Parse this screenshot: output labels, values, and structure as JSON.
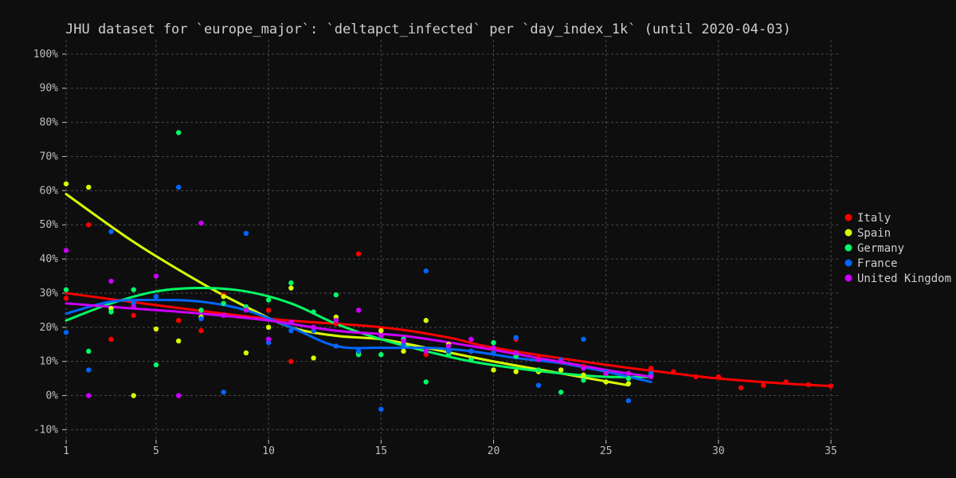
{
  "chart_data": {
    "type": "scatter",
    "title": "JHU dataset for `europe_major`: `deltapct_infected` per `day_index_1k` (until 2020-04-03)",
    "xlabel": "",
    "ylabel": "",
    "xlim": [
      1,
      35
    ],
    "ylim": [
      -12,
      103
    ],
    "x_ticks": [
      1,
      5,
      10,
      15,
      20,
      25,
      30,
      35
    ],
    "y_ticks": [
      -10,
      0,
      10,
      20,
      30,
      40,
      50,
      60,
      70,
      80,
      90,
      100
    ],
    "y_tick_suffix": "%",
    "grid": true,
    "legend_position": "right",
    "series": [
      {
        "name": "Italy",
        "color": "#ff0000",
        "points": [
          [
            1,
            28.5
          ],
          [
            2,
            50
          ],
          [
            3,
            16.5
          ],
          [
            4,
            23.5
          ],
          [
            5,
            19.5
          ],
          [
            6,
            22
          ],
          [
            7,
            19
          ],
          [
            8,
            29.5
          ],
          [
            9,
            25.5
          ],
          [
            10,
            25
          ],
          [
            11,
            10
          ],
          [
            12,
            20
          ],
          [
            13,
            21
          ],
          [
            14,
            41.5
          ],
          [
            15,
            19.5
          ],
          [
            16,
            16
          ],
          [
            17,
            12
          ],
          [
            18,
            13
          ],
          [
            19,
            10.5
          ],
          [
            20,
            13.5
          ],
          [
            21,
            16.5
          ],
          [
            22,
            11
          ],
          [
            23,
            10
          ],
          [
            24,
            8.5
          ],
          [
            25,
            7
          ],
          [
            26,
            6.5
          ],
          [
            27,
            8
          ],
          [
            28,
            7
          ],
          [
            29,
            5.5
          ],
          [
            30,
            5.5
          ],
          [
            31,
            2.3
          ],
          [
            32,
            3
          ],
          [
            33,
            4
          ],
          [
            34,
            3.2
          ],
          [
            35,
            2.8
          ]
        ],
        "trend": [
          [
            1,
            30
          ],
          [
            5,
            26.5
          ],
          [
            10,
            22.5
          ],
          [
            15,
            20
          ],
          [
            18,
            17
          ],
          [
            20,
            14
          ],
          [
            25,
            9
          ],
          [
            28,
            6.5
          ],
          [
            30,
            5
          ],
          [
            33,
            3.5
          ],
          [
            35,
            2.8
          ]
        ]
      },
      {
        "name": "Spain",
        "color": "#d8ff00",
        "points": [
          [
            1,
            62
          ],
          [
            2,
            61
          ],
          [
            3,
            25.5
          ],
          [
            4,
            0
          ],
          [
            5,
            19.5
          ],
          [
            6,
            16
          ],
          [
            7,
            23
          ],
          [
            8,
            29
          ],
          [
            9,
            12.5
          ],
          [
            10,
            20
          ],
          [
            11,
            31.5
          ],
          [
            12,
            11
          ],
          [
            13,
            23
          ],
          [
            14,
            12.5
          ],
          [
            15,
            19
          ],
          [
            16,
            13
          ],
          [
            17,
            22
          ],
          [
            18,
            15
          ],
          [
            19,
            10.5
          ],
          [
            20,
            7.5
          ],
          [
            21,
            7
          ],
          [
            22,
            7
          ],
          [
            23,
            7.5
          ],
          [
            24,
            6
          ],
          [
            25,
            4
          ],
          [
            26,
            3.5
          ]
        ],
        "trend": [
          [
            1,
            59
          ],
          [
            4,
            45
          ],
          [
            7,
            33
          ],
          [
            9,
            26
          ],
          [
            11,
            20
          ],
          [
            13,
            17.5
          ],
          [
            15,
            16.5
          ],
          [
            17,
            14
          ],
          [
            20,
            10
          ],
          [
            23,
            6.5
          ],
          [
            26,
            3
          ]
        ]
      },
      {
        "name": "Germany",
        "color": "#00ff66",
        "points": [
          [
            1,
            31
          ],
          [
            2,
            13
          ],
          [
            3,
            24.5
          ],
          [
            4,
            31
          ],
          [
            5,
            9
          ],
          [
            6,
            77
          ],
          [
            7,
            25
          ],
          [
            8,
            27
          ],
          [
            9,
            26
          ],
          [
            10,
            28
          ],
          [
            11,
            33
          ],
          [
            12,
            24.5
          ],
          [
            13,
            29.5
          ],
          [
            14,
            12
          ],
          [
            15,
            12
          ],
          [
            16,
            16.5
          ],
          [
            17,
            4
          ],
          [
            18,
            12
          ],
          [
            19,
            10.5
          ],
          [
            20,
            15.5
          ],
          [
            21,
            11.5
          ],
          [
            22,
            7.5
          ],
          [
            23,
            1
          ],
          [
            24,
            4.5
          ],
          [
            25,
            6.5
          ],
          [
            26,
            5
          ],
          [
            27,
            6
          ]
        ],
        "trend": [
          [
            1,
            22
          ],
          [
            3,
            27
          ],
          [
            5,
            30.5
          ],
          [
            7,
            31.5
          ],
          [
            9,
            30.5
          ],
          [
            11,
            27
          ],
          [
            13,
            21
          ],
          [
            15,
            16.5
          ],
          [
            17,
            13
          ],
          [
            19,
            10
          ],
          [
            21,
            8
          ],
          [
            23,
            6.5
          ],
          [
            25,
            5.5
          ],
          [
            27,
            5.5
          ]
        ]
      },
      {
        "name": "France",
        "color": "#0066ff",
        "points": [
          [
            1,
            18.5
          ],
          [
            2,
            7.5
          ],
          [
            3,
            48
          ],
          [
            4,
            27
          ],
          [
            5,
            29
          ],
          [
            6,
            61
          ],
          [
            7,
            22.5
          ],
          [
            8,
            1
          ],
          [
            9,
            47.5
          ],
          [
            10,
            15.5
          ],
          [
            11,
            19
          ],
          [
            12,
            19
          ],
          [
            13,
            14.5
          ],
          [
            14,
            13
          ],
          [
            15,
            -4
          ],
          [
            16,
            15
          ],
          [
            17,
            36.5
          ],
          [
            18,
            13
          ],
          [
            19,
            13
          ],
          [
            20,
            12.5
          ],
          [
            21,
            17
          ],
          [
            22,
            3
          ],
          [
            23,
            10.5
          ],
          [
            24,
            16.5
          ],
          [
            25,
            7
          ],
          [
            26,
            -1.5
          ],
          [
            27,
            6.5
          ]
        ],
        "trend": [
          [
            1,
            24
          ],
          [
            3,
            27.5
          ],
          [
            5,
            28
          ],
          [
            7,
            27.5
          ],
          [
            9,
            25
          ],
          [
            11,
            20
          ],
          [
            13,
            14.5
          ],
          [
            15,
            14
          ],
          [
            17,
            14
          ],
          [
            19,
            13
          ],
          [
            21,
            11
          ],
          [
            23,
            9.5
          ],
          [
            25,
            7
          ],
          [
            27,
            4
          ]
        ]
      },
      {
        "name": "United Kingdom",
        "color": "#cc00ff",
        "points": [
          [
            1,
            42.5
          ],
          [
            2,
            0
          ],
          [
            3,
            33.5
          ],
          [
            4,
            26
          ],
          [
            5,
            35
          ],
          [
            6,
            0
          ],
          [
            7,
            50.5
          ],
          [
            8,
            23.5
          ],
          [
            9,
            25
          ],
          [
            10,
            16.5
          ],
          [
            11,
            21.5
          ],
          [
            12,
            20
          ],
          [
            13,
            22
          ],
          [
            14,
            25
          ],
          [
            15,
            17.5
          ],
          [
            16,
            16
          ],
          [
            17,
            13
          ],
          [
            18,
            14.5
          ],
          [
            19,
            16.5
          ],
          [
            20,
            14
          ],
          [
            21,
            12.5
          ],
          [
            22,
            10.5
          ],
          [
            23,
            10
          ],
          [
            24,
            8
          ],
          [
            25,
            6.5
          ],
          [
            26,
            6.5
          ],
          [
            27,
            5.5
          ]
        ],
        "trend": [
          [
            1,
            27
          ],
          [
            4,
            25.5
          ],
          [
            7,
            24
          ],
          [
            10,
            22
          ],
          [
            13,
            19
          ],
          [
            16,
            17.5
          ],
          [
            19,
            14.5
          ],
          [
            22,
            11
          ],
          [
            25,
            7.5
          ],
          [
            27,
            5.5
          ]
        ]
      }
    ]
  }
}
